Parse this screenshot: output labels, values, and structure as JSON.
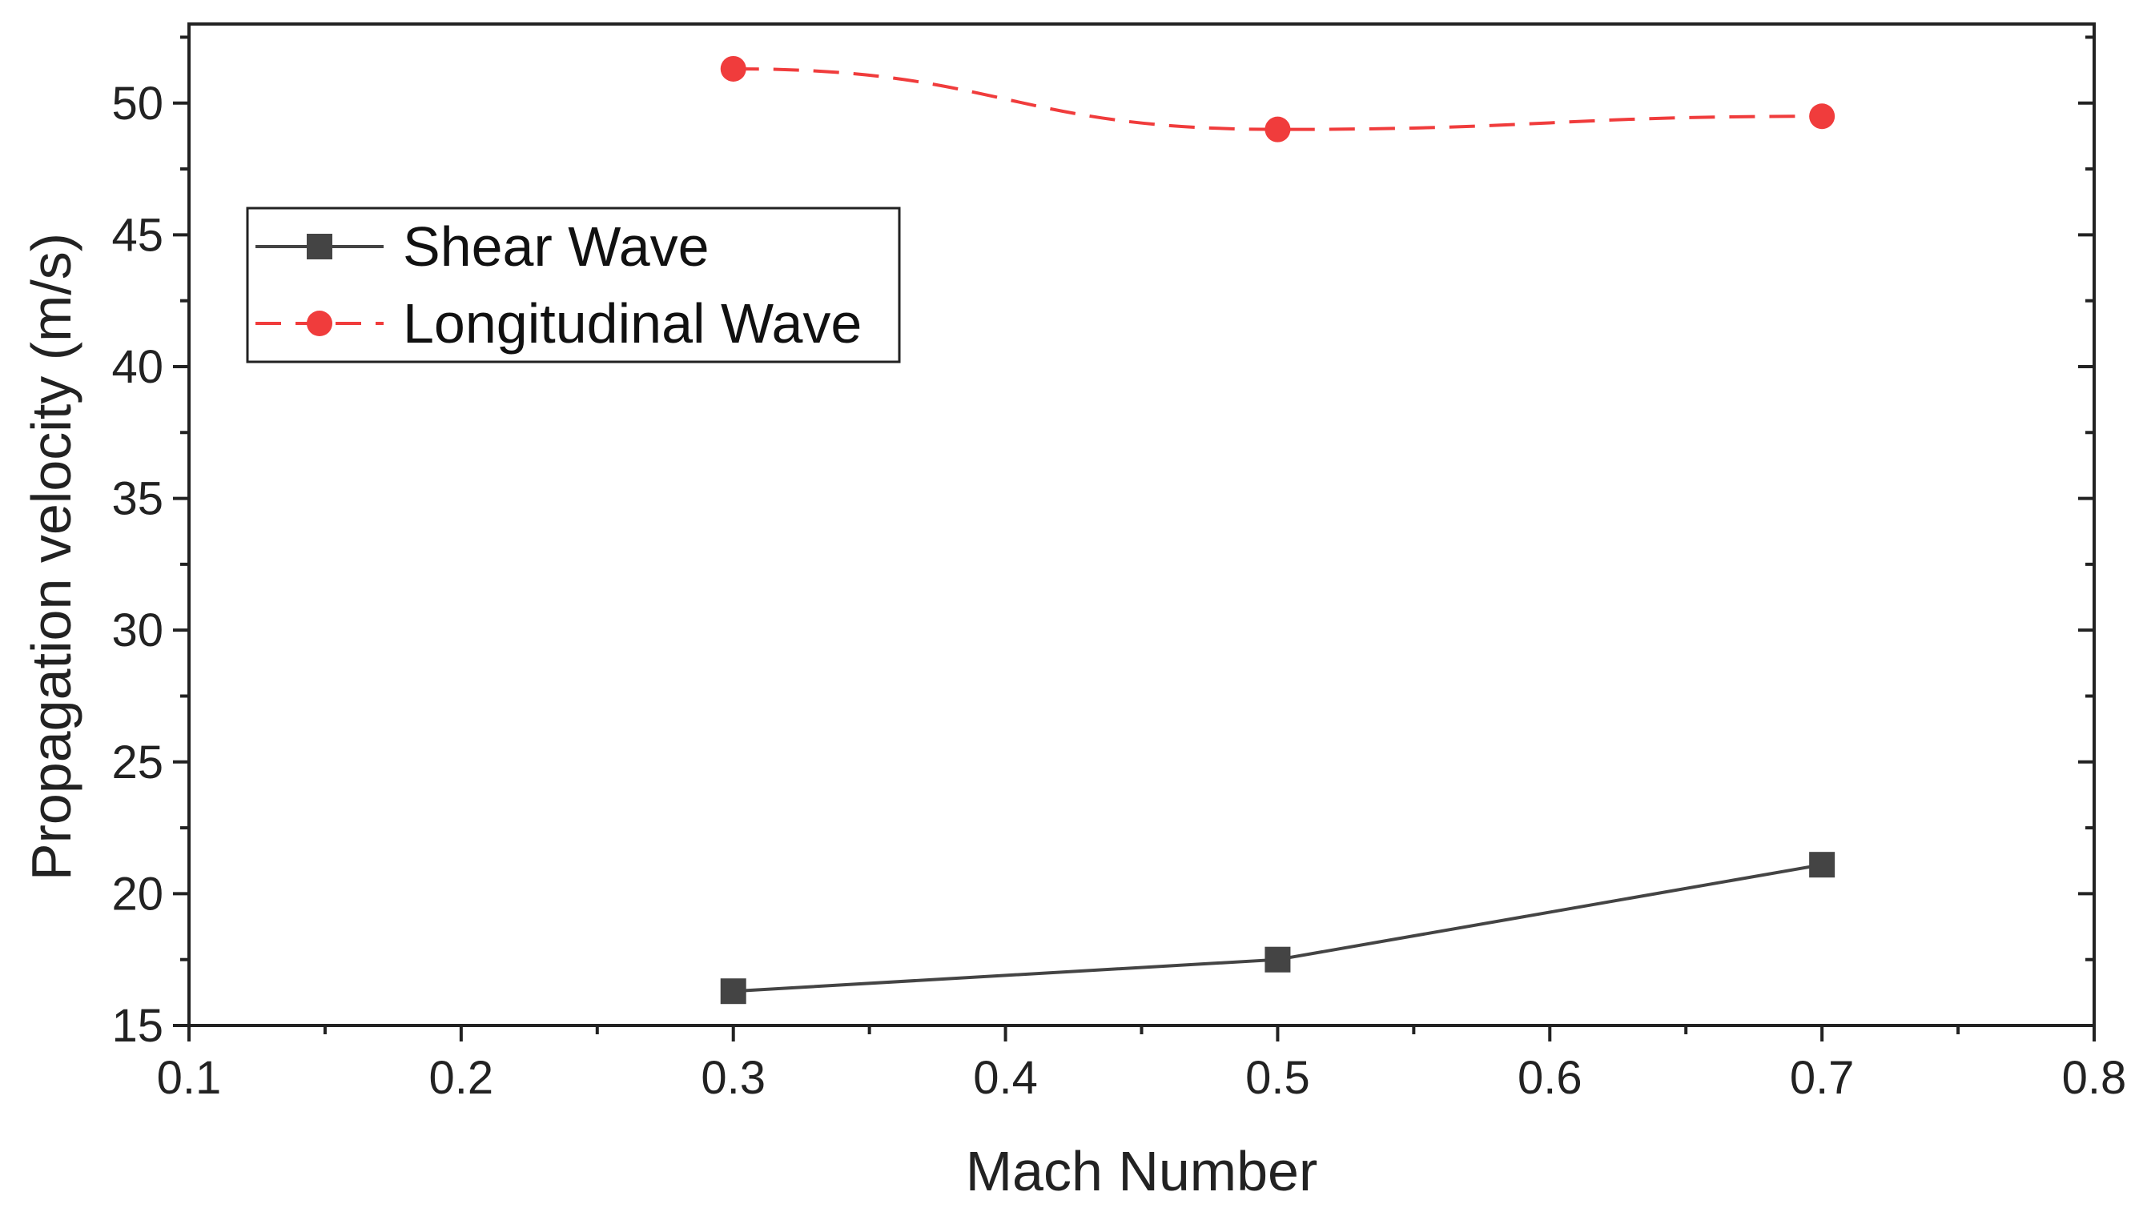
{
  "chart_data": {
    "type": "line",
    "title": "",
    "xlabel": "Mach Number",
    "ylabel": "Propagation velocity (m/s)",
    "xlim": [
      0.1,
      0.8
    ],
    "ylim": [
      15,
      53
    ],
    "x_ticks": [
      0.1,
      0.2,
      0.3,
      0.4,
      0.5,
      0.6,
      0.7,
      0.8
    ],
    "x_tick_labels": [
      "0.1",
      "0.2",
      "0.3",
      "0.4",
      "0.5",
      "0.6",
      "0.7",
      "0.8"
    ],
    "y_ticks": [
      15,
      20,
      25,
      30,
      35,
      40,
      45,
      50
    ],
    "y_tick_labels": [
      "15",
      "20",
      "25",
      "30",
      "35",
      "40",
      "45",
      "50"
    ],
    "grid": false,
    "legend_position": "upper-left",
    "series": [
      {
        "name": "Shear Wave",
        "color": "#444444",
        "line_style": "solid",
        "marker": "square",
        "x": [
          0.3,
          0.5,
          0.7
        ],
        "values": [
          16.3,
          17.5,
          21.1
        ]
      },
      {
        "name": "Longitudinal Wave",
        "color": "#f03c3c",
        "line_style": "dashed",
        "marker": "circle",
        "x": [
          0.3,
          0.5,
          0.7
        ],
        "values": [
          51.3,
          49.0,
          49.5
        ]
      }
    ]
  }
}
